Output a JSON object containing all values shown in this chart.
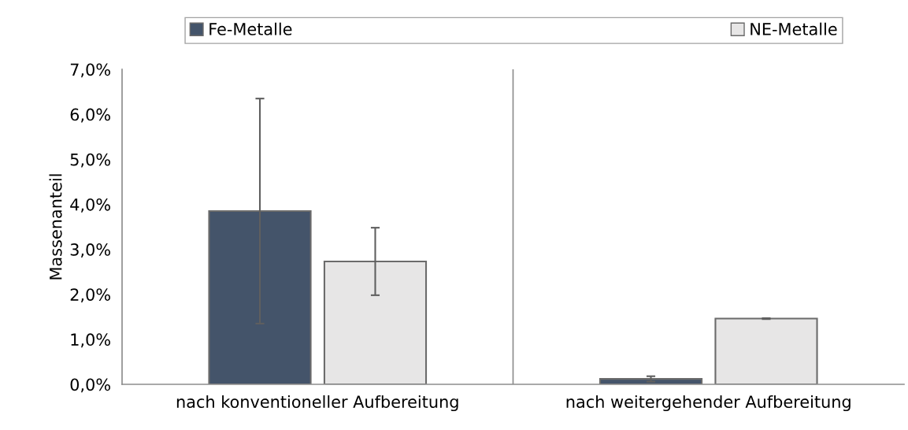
{
  "chart_data": {
    "type": "bar",
    "ylabel": "Massenanteil",
    "categories": [
      "nach konventioneller Aufbereitung",
      "nach weitergehender Aufbereitung"
    ],
    "series": [
      {
        "name": "Fe-Metalle",
        "color": "#44546a",
        "values": [
          3.85,
          0.12
        ],
        "errors": [
          2.5,
          0.06
        ]
      },
      {
        "name": "NE-Metalle",
        "color": "#e7e6e6",
        "values": [
          2.73,
          1.46
        ],
        "errors": [
          0.75,
          0.01
        ]
      }
    ],
    "ylim": [
      0,
      7
    ],
    "yticks": [
      {
        "value": 0,
        "label": "0,0%"
      },
      {
        "value": 1,
        "label": "1,0%"
      },
      {
        "value": 2,
        "label": "2,0%"
      },
      {
        "value": 3,
        "label": "3,0%"
      },
      {
        "value": 4,
        "label": "4,0%"
      },
      {
        "value": 5,
        "label": "5,0%"
      },
      {
        "value": 6,
        "label": "6,0%"
      },
      {
        "value": 7,
        "label": "7,0%"
      }
    ],
    "grid": "x",
    "legend": "top"
  }
}
